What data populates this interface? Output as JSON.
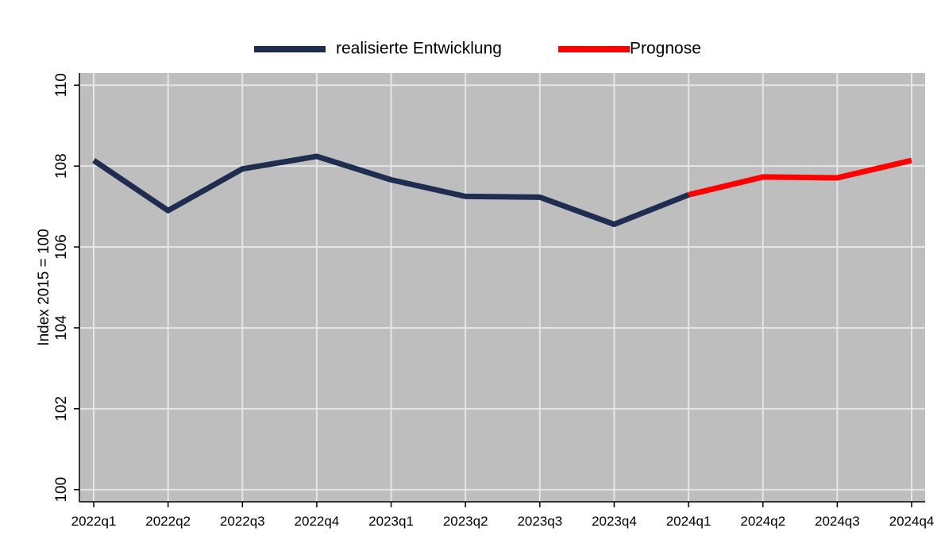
{
  "chart_data": {
    "type": "line",
    "y_label": "Index 2015 = 100",
    "categories": [
      "2022q1",
      "2022q2",
      "2022q3",
      "2022q4",
      "2023q1",
      "2023q2",
      "2023q3",
      "2023q4",
      "2024q1",
      "2024q2",
      "2024q3",
      "2024q4"
    ],
    "series": [
      {
        "name": "realisierte Entwicklung",
        "color": "#1f2d50",
        "values": [
          108.14,
          106.9,
          107.93,
          108.24,
          107.66,
          107.25,
          107.23,
          106.56,
          107.29,
          null,
          null,
          null
        ]
      },
      {
        "name": "Prognose",
        "color": "#ff0000",
        "values": [
          null,
          null,
          null,
          null,
          null,
          null,
          null,
          null,
          107.29,
          107.73,
          107.71,
          108.14
        ]
      }
    ],
    "ylim": [
      99.7,
      110.3
    ],
    "yticks": [
      100,
      102,
      104,
      106,
      108,
      110
    ],
    "grid": true,
    "legend": "top"
  }
}
